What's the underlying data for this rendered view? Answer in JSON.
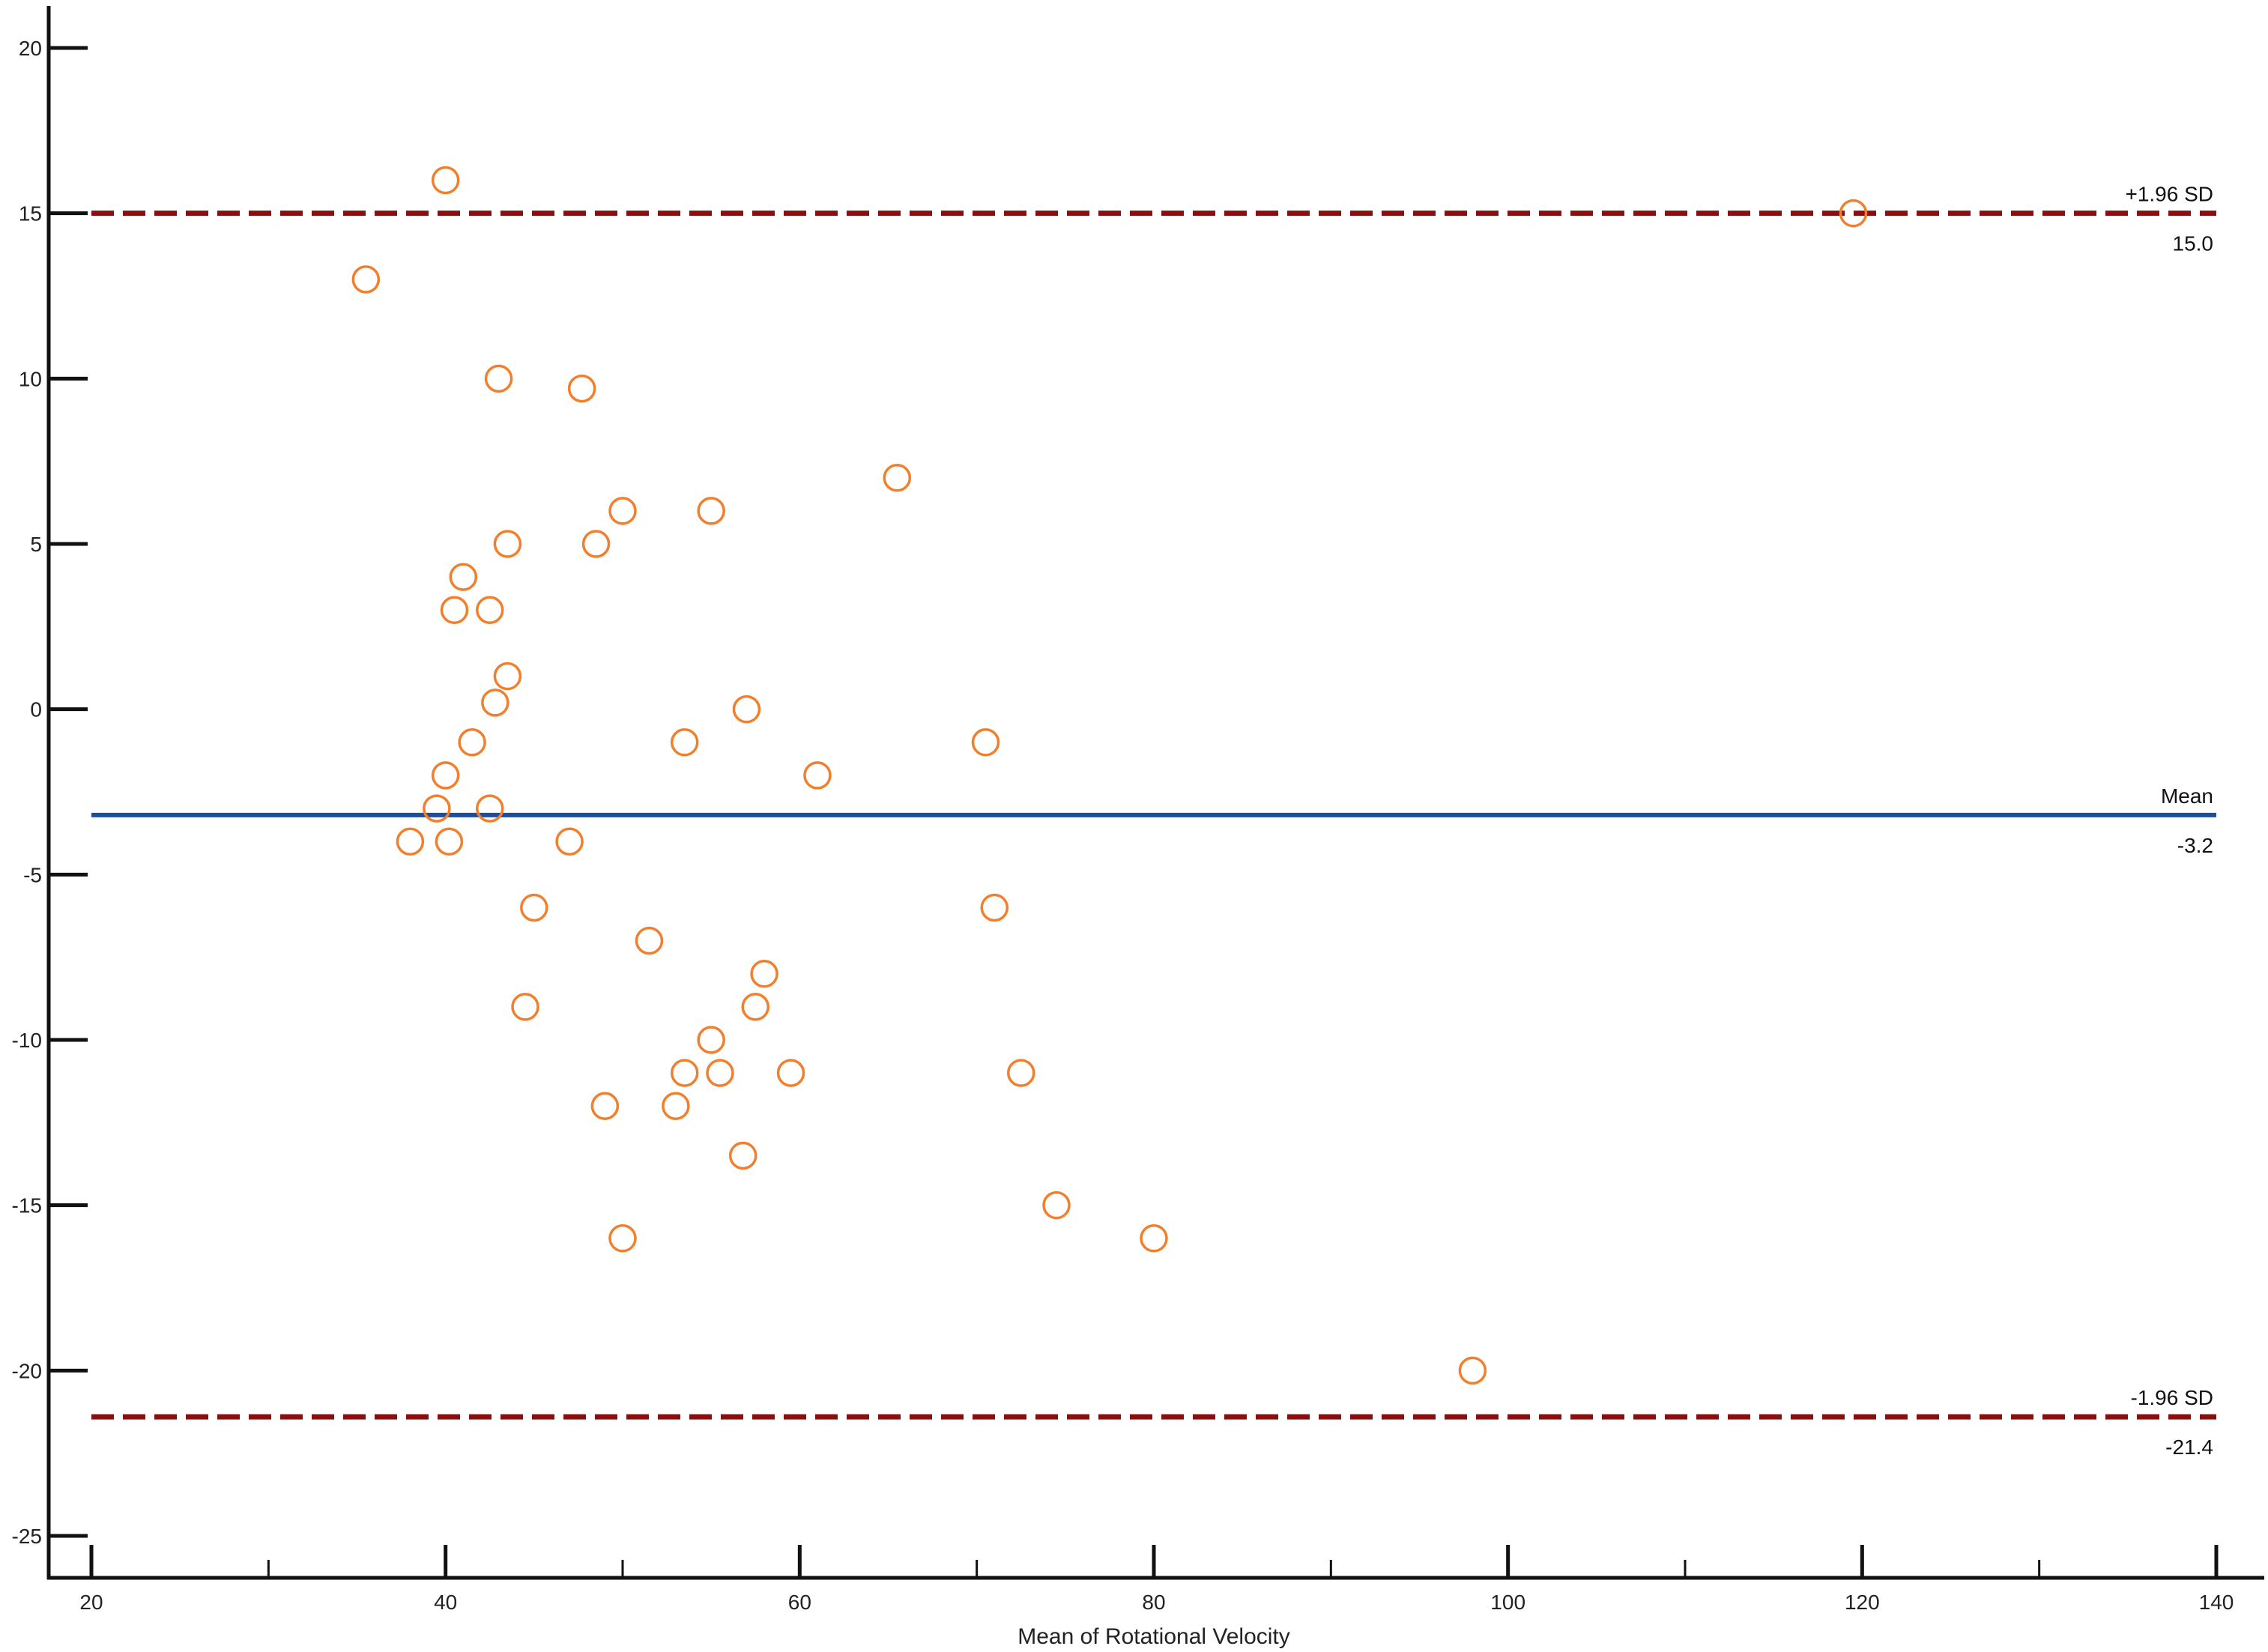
{
  "colors": {
    "background": "#ffffff",
    "axis": "#111111",
    "point": "#f07f2e",
    "mean_line": "#1f4e96",
    "limit_line": "#8b0d0d"
  },
  "chart_data": {
    "type": "scatter",
    "title": "",
    "xlabel": "Mean of Rotational Velocity",
    "ylabel": "",
    "xlim": [
      20,
      140
    ],
    "ylim": [
      -25,
      20
    ],
    "x_ticks": [
      20,
      40,
      60,
      80,
      100,
      120,
      140
    ],
    "x_minor_ticks": [
      30,
      50,
      70,
      90,
      110,
      130
    ],
    "y_ticks": [
      20,
      15,
      10,
      5,
      0,
      -5,
      -10,
      -15,
      -20,
      -25
    ],
    "grid": false,
    "marker": "open-circle",
    "reference_lines": [
      {
        "kind": "upper-limit",
        "label": "+1.96 SD",
        "value_label": "15.0",
        "y": 15.0,
        "style": "dashed"
      },
      {
        "kind": "mean",
        "label": "Mean",
        "value_label": "-3.2",
        "y": -3.2,
        "style": "solid"
      },
      {
        "kind": "lower-limit",
        "label": "-1.96 SD",
        "value_label": "-21.4",
        "y": -21.4,
        "style": "dashed"
      }
    ],
    "points": [
      {
        "x": 40.0,
        "y": 16.0
      },
      {
        "x": 35.5,
        "y": 13.0
      },
      {
        "x": 119.5,
        "y": 15.0
      },
      {
        "x": 43.0,
        "y": 10.0
      },
      {
        "x": 47.7,
        "y": 9.7
      },
      {
        "x": 65.5,
        "y": 7.0
      },
      {
        "x": 50.0,
        "y": 6.0
      },
      {
        "x": 55.0,
        "y": 6.0
      },
      {
        "x": 43.5,
        "y": 5.0
      },
      {
        "x": 48.5,
        "y": 5.0
      },
      {
        "x": 41.0,
        "y": 4.0
      },
      {
        "x": 40.5,
        "y": 3.0
      },
      {
        "x": 42.5,
        "y": 3.0
      },
      {
        "x": 43.5,
        "y": 1.0
      },
      {
        "x": 42.8,
        "y": 0.2
      },
      {
        "x": 57.0,
        "y": 0.0
      },
      {
        "x": 41.5,
        "y": -1.0
      },
      {
        "x": 53.5,
        "y": -1.0
      },
      {
        "x": 70.5,
        "y": -1.0
      },
      {
        "x": 40.0,
        "y": -2.0
      },
      {
        "x": 61.0,
        "y": -2.0
      },
      {
        "x": 39.5,
        "y": -3.0
      },
      {
        "x": 42.5,
        "y": -3.0
      },
      {
        "x": 38.0,
        "y": -4.0
      },
      {
        "x": 40.2,
        "y": -4.0
      },
      {
        "x": 47.0,
        "y": -4.0
      },
      {
        "x": 45.0,
        "y": -6.0
      },
      {
        "x": 71.0,
        "y": -6.0
      },
      {
        "x": 51.5,
        "y": -7.0
      },
      {
        "x": 58.0,
        "y": -8.0
      },
      {
        "x": 44.5,
        "y": -9.0
      },
      {
        "x": 57.5,
        "y": -9.0
      },
      {
        "x": 55.0,
        "y": -10.0
      },
      {
        "x": 53.5,
        "y": -11.0
      },
      {
        "x": 55.5,
        "y": -11.0
      },
      {
        "x": 59.5,
        "y": -11.0
      },
      {
        "x": 72.5,
        "y": -11.0
      },
      {
        "x": 49.0,
        "y": -12.0
      },
      {
        "x": 53.0,
        "y": -12.0
      },
      {
        "x": 56.8,
        "y": -13.5
      },
      {
        "x": 74.5,
        "y": -15.0
      },
      {
        "x": 50.0,
        "y": -16.0
      },
      {
        "x": 80.0,
        "y": -16.0
      },
      {
        "x": 98.0,
        "y": -20.0
      }
    ]
  }
}
